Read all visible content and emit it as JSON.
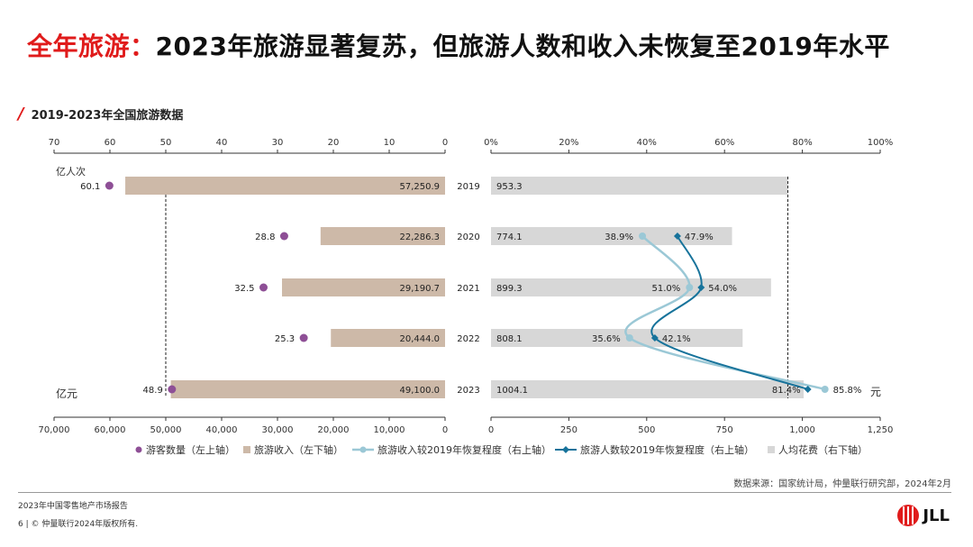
{
  "header": {
    "title_red": "全年旅游：",
    "title_dark": "2023年旅游显著复苏，但旅游人数和收入未恢复至2019年水平",
    "subtitle": "2019-2023年全国旅游数据"
  },
  "chart_data": {
    "type": "bar",
    "years": [
      "2019",
      "2020",
      "2021",
      "2022",
      "2023"
    ],
    "left": {
      "top_axis_ticks": [
        "70",
        "60",
        "50",
        "40",
        "30",
        "20",
        "10",
        "0"
      ],
      "top_axis_range": [
        70,
        0
      ],
      "top_unit": "亿人次",
      "bottom_axis_ticks": [
        "70,000",
        "60,000",
        "50,000",
        "40,000",
        "30,000",
        "20,000",
        "10,000",
        "0"
      ],
      "bottom_axis_range": [
        70000,
        0
      ],
      "bottom_unit": "亿元",
      "visitors": [
        60.1,
        28.8,
        32.5,
        25.3,
        48.9
      ],
      "visitor_labels": [
        "60.1",
        "28.8",
        "32.5",
        "25.3",
        "48.9"
      ],
      "revenue": [
        57250.9,
        22286.3,
        29190.7,
        20444.0,
        49100.0
      ],
      "revenue_labels": [
        "57,250.9",
        "22,286.3",
        "29,190.7",
        "20,444.0",
        "49,100.0"
      ],
      "reference_line": 50
    },
    "right": {
      "top_axis_ticks": [
        "0%",
        "20%",
        "40%",
        "60%",
        "80%",
        "100%"
      ],
      "top_axis_range": [
        0,
        100
      ],
      "bottom_axis_ticks": [
        "0",
        "250",
        "500",
        "750",
        "1,000",
        "1,250"
      ],
      "bottom_axis_range": [
        0,
        1250
      ],
      "bottom_unit": "元",
      "per_capita": [
        953.3,
        774.1,
        899.3,
        808.1,
        1004.1
      ],
      "per_capita_labels": [
        "953.3",
        "774.1",
        "899.3",
        "808.1",
        "1004.1"
      ],
      "revenue_recovery": [
        null,
        38.9,
        51.0,
        35.6,
        85.8
      ],
      "revenue_recovery_labels": [
        "",
        "38.9%",
        "51.0%",
        "35.6%",
        "85.8%"
      ],
      "visitor_recovery": [
        null,
        47.9,
        54.0,
        42.1,
        81.4
      ],
      "visitor_recovery_labels": [
        "",
        "47.9%",
        "54.0%",
        "42.1%",
        "81.4%"
      ],
      "reference_line": 953.3
    },
    "legend": [
      {
        "name": "游客数量（左上轴）",
        "kind": "dot",
        "color": "#8e4f96"
      },
      {
        "name": "旅游收入（左下轴）",
        "kind": "square",
        "color": "#cdb9a8"
      },
      {
        "name": "旅游收入较2019年恢复程度（右上轴）",
        "kind": "line-dot",
        "color": "#9bc8d6"
      },
      {
        "name": "旅游人数较2019年恢复程度（右上轴）",
        "kind": "line-diamond",
        "color": "#17739b"
      },
      {
        "name": "人均花费（右下轴）",
        "kind": "square",
        "color": "#d7d7d7"
      }
    ],
    "colors": {
      "visitors": "#8e4f96",
      "revenue": "#cdb9a8",
      "per_capita": "#d7d7d7",
      "revenue_recovery": "#9bc8d6",
      "visitor_recovery": "#17739b"
    }
  },
  "footer": {
    "source": "数据来源：国家统计局，仲量联行研究部，2024年2月",
    "report": "2023年中国零售地产市场报告",
    "copyright": "6 | © 仲量联行2024年版权所有.",
    "logo_text": "JLL"
  }
}
